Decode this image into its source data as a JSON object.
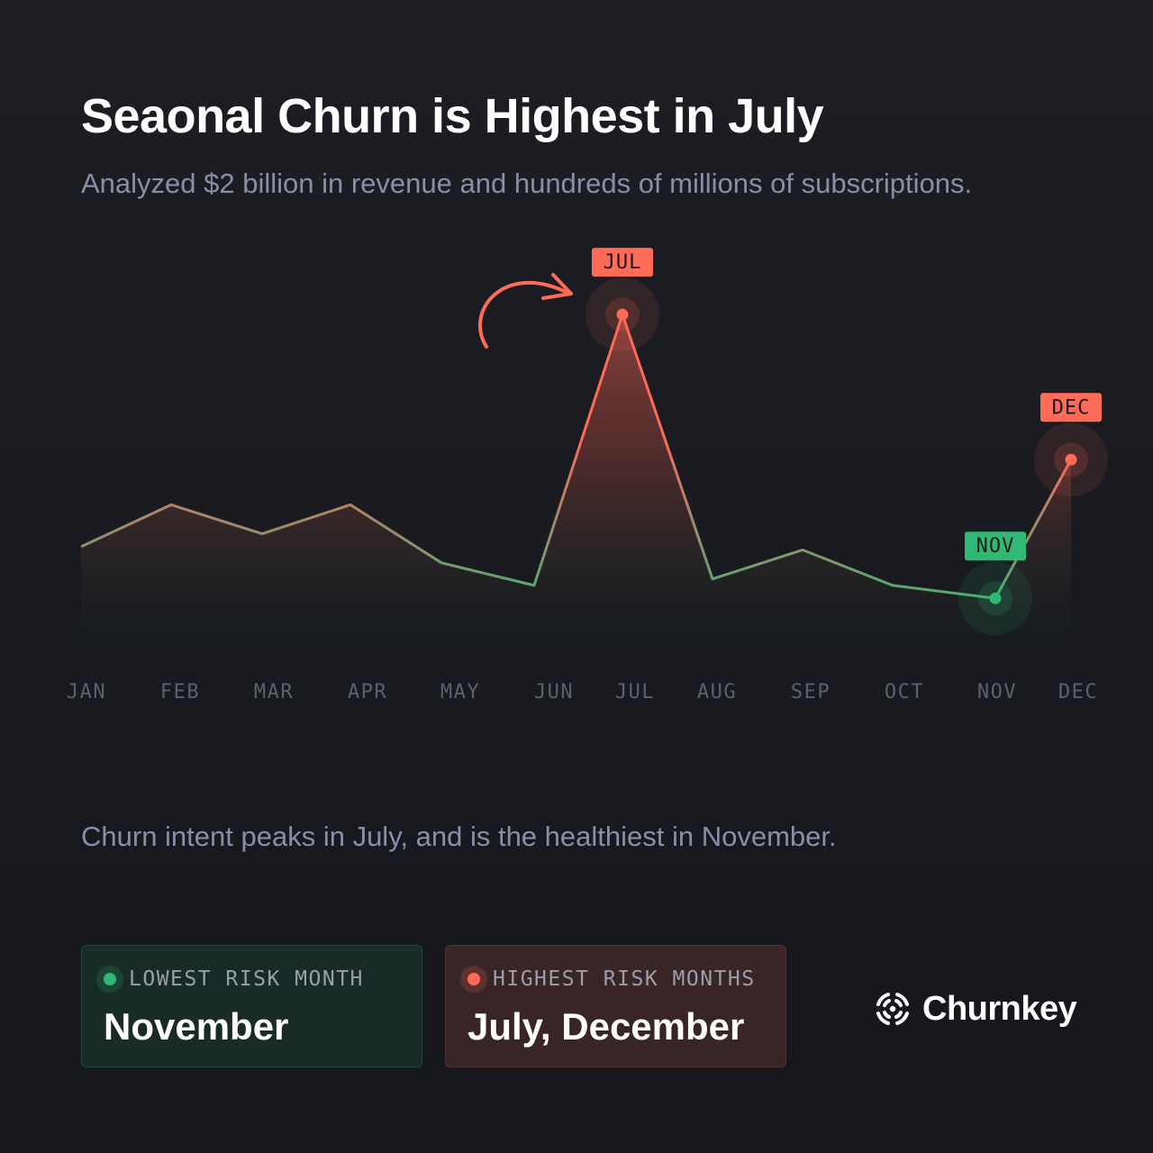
{
  "header": {
    "title": "Seaonal Churn is Highest in July",
    "subtitle": "Analyzed $2 billion in revenue and hundreds of millions of subscriptions."
  },
  "caption": "Churn intent peaks in July, and is the healthiest in November.",
  "chart_data": {
    "type": "area",
    "title": "Seaonal Churn is Highest in July",
    "categories": [
      "JAN",
      "FEB",
      "MAR",
      "APR",
      "MAY",
      "JUN",
      "JUL",
      "AUG",
      "SEP",
      "OCT",
      "NOV",
      "DEC"
    ],
    "series": [
      {
        "values": [
          0.26,
          0.39,
          0.3,
          0.39,
          0.21,
          0.14,
          0.98,
          0.16,
          0.25,
          0.14,
          0.1,
          0.53
        ]
      }
    ],
    "ylim": [
      0,
      1
    ],
    "grid": false,
    "highlights": [
      {
        "category": "JUL",
        "label": "JUL",
        "kind": "high"
      },
      {
        "category": "NOV",
        "label": "NOV",
        "kind": "low"
      },
      {
        "category": "DEC",
        "label": "DEC",
        "kind": "high"
      }
    ],
    "colors": {
      "high": "#ff6b57",
      "low": "#2fb975",
      "mid": "#8f9175",
      "axis_label": "#5d616c"
    }
  },
  "cards": {
    "low": {
      "label": "LOWEST RISK MONTH",
      "value": "November"
    },
    "high": {
      "label": "HIGHEST RISK MONTHS",
      "value": "July, December"
    }
  },
  "brand": {
    "name": "Churnkey",
    "icon": "churnkey-logo-icon"
  }
}
